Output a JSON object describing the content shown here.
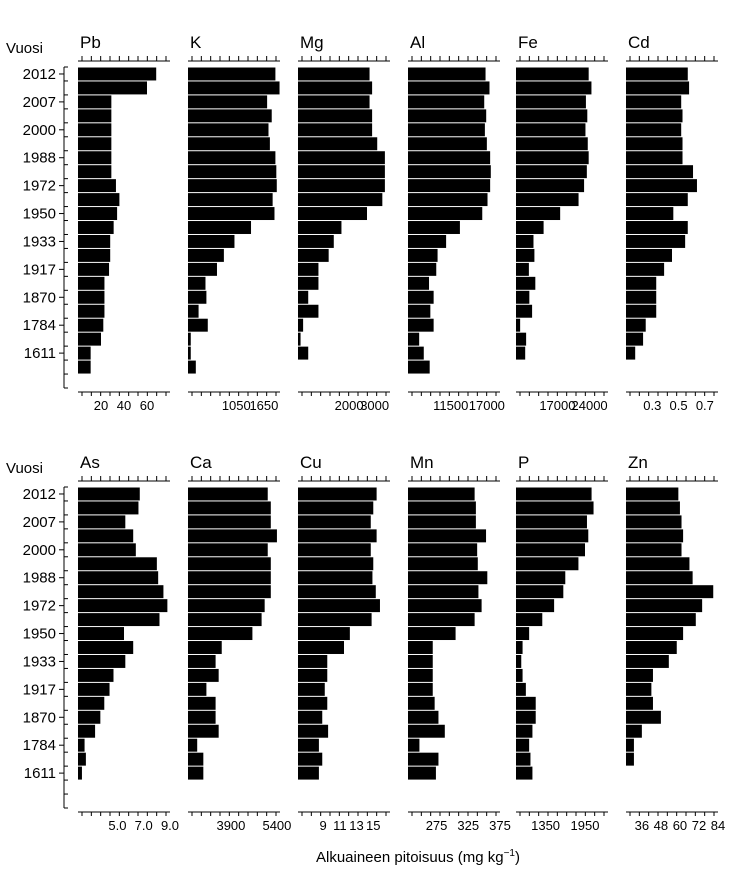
{
  "figure": {
    "xlabel": "Alkuaineen pitoisuus (mg kg",
    "xlabel_sup": "−1",
    "xlabel_end": ")"
  },
  "chart_data": {
    "type": "bar",
    "orientation": "horizontal",
    "y_title": "Vuosi",
    "y_tick_labels": [
      "2012",
      "2007",
      "2000",
      "1988",
      "1972",
      "1950",
      "1933",
      "1917",
      "1870",
      "1784",
      "1611"
    ],
    "panels": [
      {
        "title": "Pb",
        "xlim": [
          0,
          80
        ],
        "xticks": [
          20,
          40,
          60
        ],
        "xtick_labels": [
          "20",
          "40",
          "60"
        ],
        "values": [
          68,
          60,
          29,
          29,
          29,
          29,
          29,
          29,
          33,
          36,
          34,
          31,
          28,
          28,
          27,
          23,
          23,
          23,
          22,
          20,
          11,
          11,
          null
        ]
      },
      {
        "title": "K",
        "xlim": [
          0,
          2000
        ],
        "xticks": [
          1050,
          1650
        ],
        "xtick_labels": [
          "1050",
          "1650"
        ],
        "values": [
          1900,
          1990,
          1720,
          1820,
          1750,
          1780,
          1900,
          1920,
          1930,
          1840,
          1880,
          1370,
          1010,
          780,
          630,
          380,
          400,
          230,
          430,
          60,
          60,
          170,
          null
        ]
      },
      {
        "title": "Mg",
        "xlim": [
          0,
          3600
        ],
        "xticks": [
          2000,
          3000
        ],
        "xtick_labels": [
          "2000",
          "3000"
        ],
        "values": [
          2800,
          2900,
          2800,
          2900,
          2900,
          3100,
          3400,
          3400,
          3400,
          3300,
          2700,
          1700,
          1400,
          1200,
          800,
          800,
          400,
          800,
          200,
          100,
          400,
          null,
          null
        ]
      },
      {
        "title": "Al",
        "xlim": [
          5000,
          19000
        ],
        "xticks": [
          11500,
          17000
        ],
        "xtick_labels": [
          "11500",
          "17000"
        ],
        "values": [
          16800,
          17400,
          16600,
          16900,
          16700,
          17000,
          17500,
          17600,
          17500,
          17100,
          16300,
          12900,
          10800,
          9500,
          9300,
          8200,
          8900,
          8400,
          8900,
          6700,
          7400,
          8300,
          null
        ]
      },
      {
        "title": "Fe",
        "xlim": [
          8000,
          28000
        ],
        "xticks": [
          17000,
          24000
        ],
        "xtick_labels": [
          "17000",
          "24000"
        ],
        "values": [
          23800,
          24400,
          23200,
          23500,
          23100,
          23600,
          23800,
          23400,
          22800,
          21600,
          17600,
          14000,
          11800,
          12000,
          10800,
          12200,
          10900,
          11500,
          8900,
          10200,
          10000,
          null,
          null
        ]
      },
      {
        "title": "Cd",
        "xlim": [
          0.1,
          0.8
        ],
        "xticks": [
          0.3,
          0.5,
          0.7
        ],
        "xtick_labels": [
          "0.3",
          "0.5",
          "0.7"
        ],
        "values": [
          0.57,
          0.58,
          0.52,
          0.53,
          0.52,
          0.53,
          0.53,
          0.61,
          0.64,
          0.57,
          0.46,
          0.57,
          0.55,
          0.45,
          0.39,
          0.33,
          0.33,
          0.33,
          0.25,
          0.23,
          0.17,
          null,
          null
        ]
      },
      {
        "title": "As",
        "xlim": [
          2,
          9
        ],
        "xticks": [
          5.0,
          7.0,
          9.0
        ],
        "xtick_labels": [
          "5.0",
          "7.0",
          "9.0"
        ],
        "values": [
          6.7,
          6.6,
          5.6,
          6.2,
          6.4,
          8.0,
          8.1,
          8.5,
          8.8,
          8.2,
          5.5,
          6.2,
          5.6,
          4.7,
          4.4,
          4.0,
          3.7,
          3.3,
          2.5,
          2.6,
          2.3,
          null,
          null
        ]
      },
      {
        "title": "Ca",
        "xlim": [
          2500,
          5500
        ],
        "xticks": [
          3900,
          5400
        ],
        "xtick_labels": [
          "3900",
          "5400"
        ],
        "values": [
          5100,
          5200,
          5200,
          5400,
          5100,
          5200,
          5200,
          5200,
          5000,
          4900,
          4600,
          3600,
          3400,
          3500,
          3100,
          3400,
          3400,
          3500,
          2800,
          3000,
          3000,
          null,
          null
        ]
      },
      {
        "title": "Cu",
        "xlim": [
          6,
          17
        ],
        "xticks": [
          9,
          11,
          13,
          15
        ],
        "xtick_labels": [
          "9",
          "11",
          "13",
          "15"
        ],
        "values": [
          15.4,
          15.0,
          14.7,
          15.4,
          14.7,
          15.0,
          14.9,
          15.3,
          15.8,
          14.8,
          12.2,
          11.5,
          9.5,
          9.5,
          9.2,
          9.5,
          8.9,
          9.6,
          8.5,
          8.9,
          8.5,
          null,
          null
        ]
      },
      {
        "title": "Mn",
        "xlim": [
          230,
          375
        ],
        "xticks": [
          275,
          325,
          375
        ],
        "xtick_labels": [
          "275",
          "325",
          "375"
        ],
        "values": [
          335,
          337,
          337,
          353,
          339,
          340,
          355,
          341,
          346,
          335,
          305,
          269,
          269,
          269,
          269,
          272,
          278,
          288,
          248,
          278,
          274,
          null,
          null
        ]
      },
      {
        "title": "P",
        "xlim": [
          900,
          2300
        ],
        "xticks": [
          1350,
          1950
        ],
        "xtick_labels": [
          "1350",
          "1950"
        ],
        "values": [
          2050,
          2080,
          1980,
          2000,
          1950,
          1850,
          1650,
          1620,
          1480,
          1300,
          1100,
          1000,
          980,
          1000,
          1050,
          1200,
          1200,
          1150,
          1100,
          1120,
          1150,
          null,
          null
        ]
      },
      {
        "title": "Zn",
        "xlim": [
          26,
          84
        ],
        "xticks": [
          36,
          48,
          60,
          72,
          84
        ],
        "xtick_labels": [
          "36",
          "48",
          "60",
          "72",
          "84"
        ],
        "values": [
          59,
          60,
          61,
          62,
          61,
          66,
          68,
          81,
          74,
          70,
          62,
          58,
          53,
          43,
          42,
          43,
          48,
          36,
          31,
          31,
          26,
          null,
          null
        ]
      }
    ]
  }
}
